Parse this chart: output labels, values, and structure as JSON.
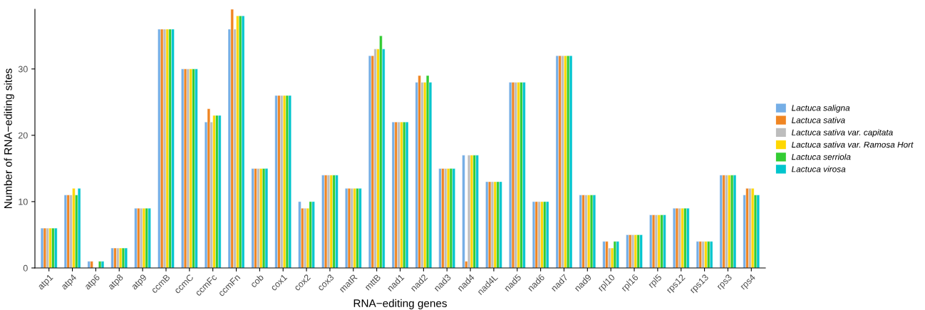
{
  "chart_data": {
    "type": "bar",
    "xlabel": "RNA−editing genes",
    "ylabel": "Number of RNA−editing sites",
    "categories": [
      "atp1",
      "atp4",
      "atp6",
      "atp8",
      "atp9",
      "ccmB",
      "ccmC",
      "ccmFc",
      "ccmFn",
      "cob",
      "cox1",
      "cox2",
      "cox3",
      "matR",
      "mttB",
      "nad1",
      "nad2",
      "nad3",
      "nad4",
      "nad4L",
      "nad5",
      "nad6",
      "nad7",
      "nad9",
      "rpl10",
      "rpl16",
      "rpl5",
      "rps12",
      "rps13",
      "rps3",
      "rps4"
    ],
    "series": [
      {
        "name": "Lactuca saligna",
        "color": "#75aee6",
        "values": [
          6,
          11,
          1,
          3,
          9,
          36,
          30,
          22,
          36,
          15,
          26,
          10,
          14,
          12,
          32,
          22,
          28,
          15,
          17,
          13,
          28,
          10,
          32,
          11,
          4,
          5,
          8,
          9,
          4,
          14,
          11
        ]
      },
      {
        "name": "Lactuca sativa",
        "color": "#f08522",
        "values": [
          6,
          11,
          1,
          3,
          9,
          36,
          30,
          24,
          39,
          15,
          26,
          9,
          14,
          12,
          32,
          22,
          29,
          15,
          1,
          13,
          28,
          10,
          32,
          11,
          4,
          5,
          8,
          9,
          4,
          14,
          12
        ]
      },
      {
        "name": "Lactuca sativa var. capitata",
        "color": "#bdbdbd",
        "values": [
          6,
          11,
          null,
          3,
          9,
          36,
          30,
          22,
          36,
          15,
          26,
          9,
          14,
          12,
          33,
          22,
          28,
          15,
          17,
          13,
          28,
          10,
          32,
          11,
          3,
          5,
          8,
          9,
          4,
          14,
          12
        ]
      },
      {
        "name": "Lactuca sativa var. Ramosa Hort",
        "color": "#ffd700",
        "values": [
          6,
          12,
          null,
          3,
          9,
          36,
          30,
          23,
          38,
          15,
          26,
          9,
          14,
          12,
          33,
          22,
          28,
          15,
          17,
          13,
          28,
          10,
          32,
          11,
          3,
          5,
          8,
          9,
          4,
          14,
          12
        ]
      },
      {
        "name": "Lactuca serriola",
        "color": "#33cc33",
        "values": [
          6,
          11,
          1,
          3,
          9,
          36,
          30,
          23,
          38,
          15,
          26,
          10,
          14,
          12,
          35,
          22,
          29,
          15,
          17,
          13,
          28,
          10,
          32,
          11,
          4,
          5,
          8,
          9,
          4,
          14,
          11
        ]
      },
      {
        "name": "Lactuca virosa",
        "color": "#00c5cd",
        "values": [
          6,
          12,
          1,
          3,
          9,
          36,
          30,
          23,
          38,
          15,
          26,
          10,
          14,
          12,
          33,
          22,
          28,
          15,
          17,
          13,
          28,
          10,
          32,
          11,
          4,
          5,
          8,
          9,
          4,
          14,
          11
        ]
      }
    ],
    "ylim": [
      0,
      39
    ],
    "yticks": [
      0,
      10,
      20,
      30
    ],
    "grid": false,
    "legend": "right"
  }
}
